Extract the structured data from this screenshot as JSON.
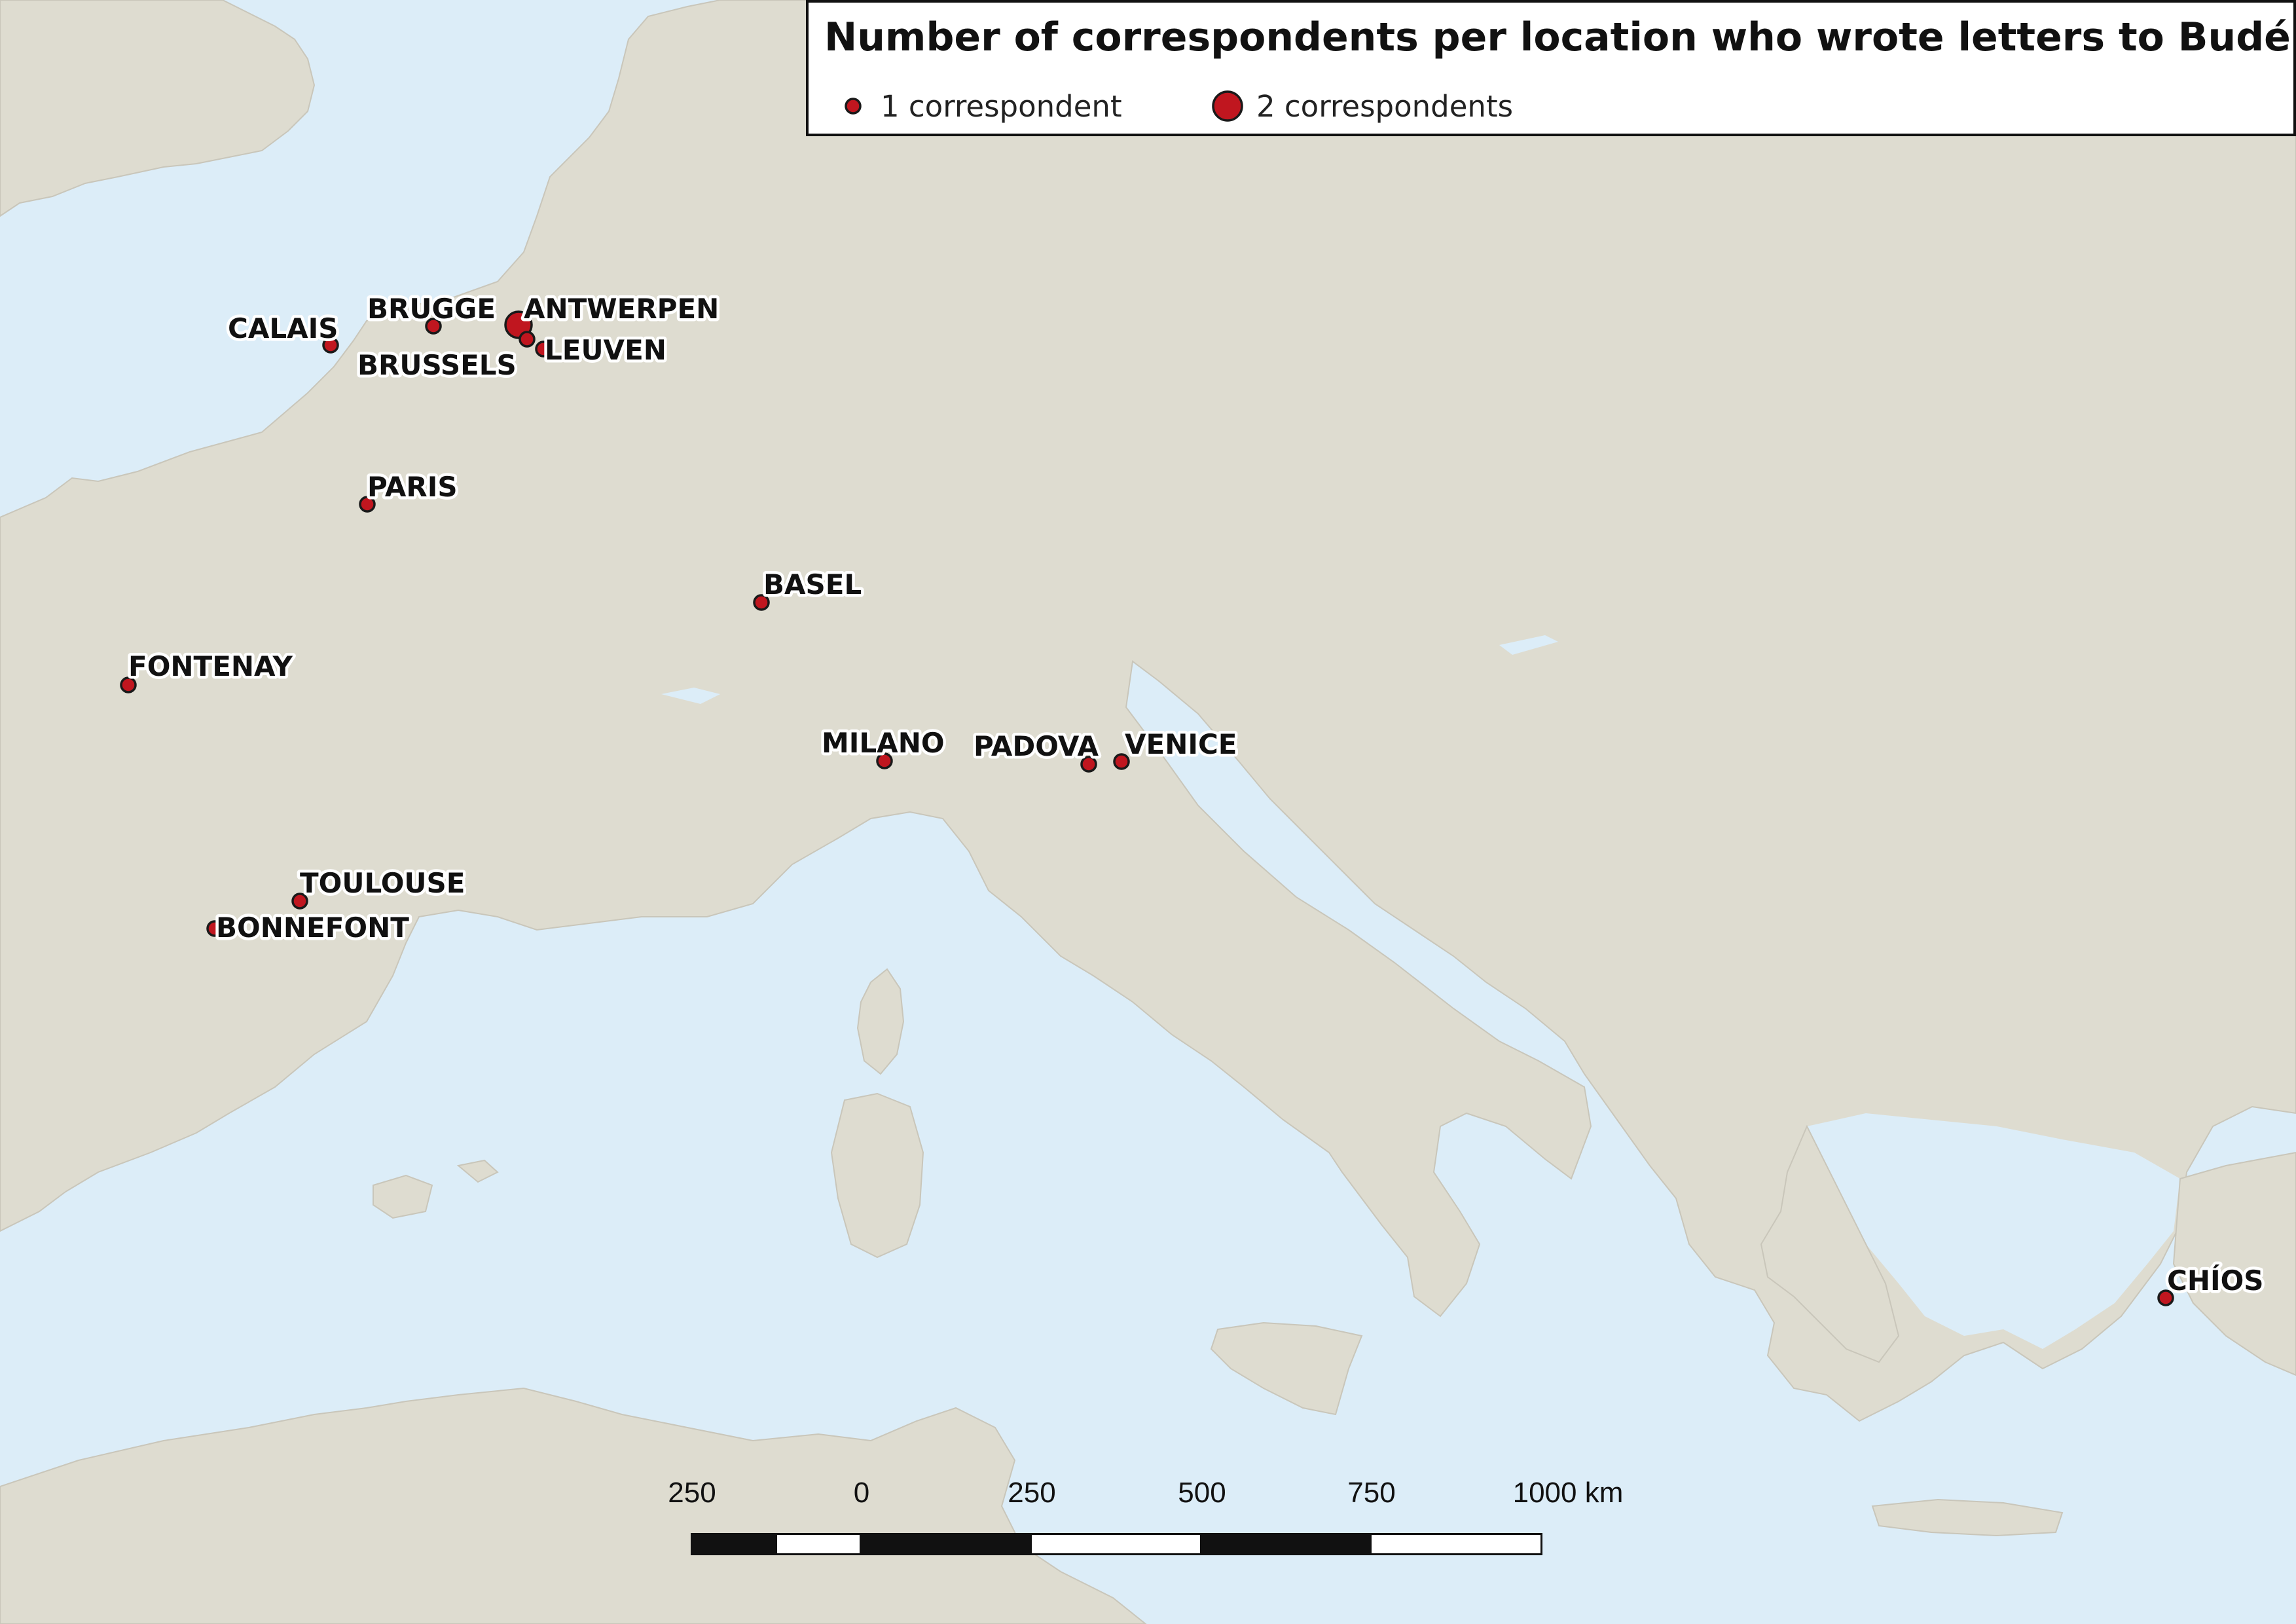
{
  "legend": {
    "title": "Number of correspondents per location who wrote letters to Budé",
    "items": [
      {
        "label": "1 correspondent",
        "count": 1
      },
      {
        "label": "2 correspondents",
        "count": 2
      }
    ]
  },
  "cities": [
    {
      "name": "CALAIS",
      "correspondents": 1
    },
    {
      "name": "BRUGGE",
      "correspondents": 1
    },
    {
      "name": "ANTWERPEN",
      "correspondents": 2
    },
    {
      "name": "LEUVEN",
      "correspondents": 1
    },
    {
      "name": "BRUSSELS",
      "correspondents": 1
    },
    {
      "name": "PARIS",
      "correspondents": 1
    },
    {
      "name": "BASEL",
      "correspondents": 1
    },
    {
      "name": "FONTENAY",
      "correspondents": 1
    },
    {
      "name": "MILANO",
      "correspondents": 1
    },
    {
      "name": "PADOVA",
      "correspondents": 1
    },
    {
      "name": "VENICE",
      "correspondents": 1
    },
    {
      "name": "TOULOUSE",
      "correspondents": 1
    },
    {
      "name": "BONNEFONT",
      "correspondents": 1
    },
    {
      "name": "CHÍOS",
      "correspondents": 1
    }
  ],
  "scale_bar": {
    "labels": [
      "250",
      "0",
      "250",
      "500",
      "750",
      "1000 km"
    ]
  },
  "colors": {
    "sea": "#dcedf8",
    "land": "#dedcd0",
    "marker": "#c0161f"
  }
}
